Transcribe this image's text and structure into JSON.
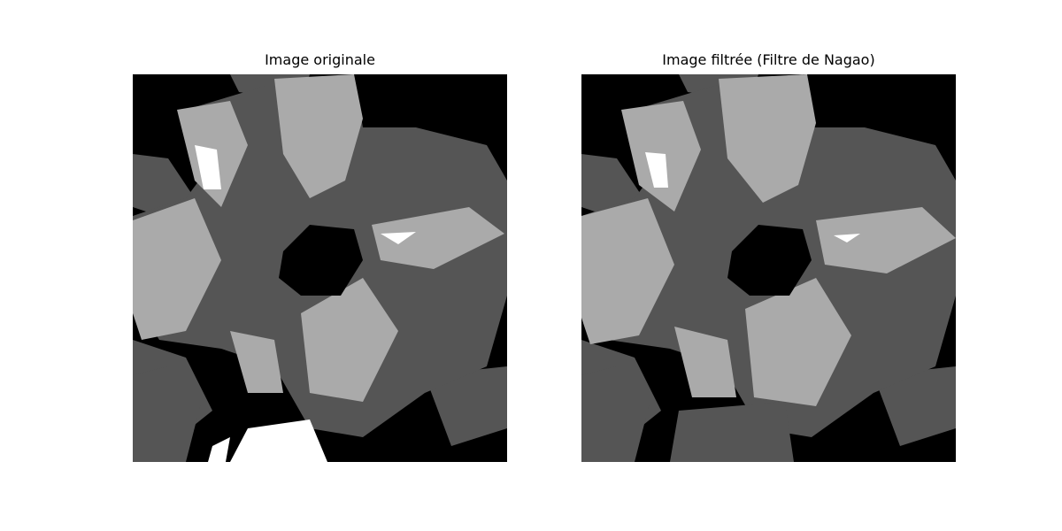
{
  "figure": {
    "panels": [
      {
        "title": "Image originale"
      },
      {
        "title": "Image filtrée (Filtre de Nagao)"
      }
    ]
  },
  "palette": {
    "black": "#000000",
    "dark_gray": "#555555",
    "light_gray": "#aaaaaa",
    "white": "#ffffff"
  }
}
